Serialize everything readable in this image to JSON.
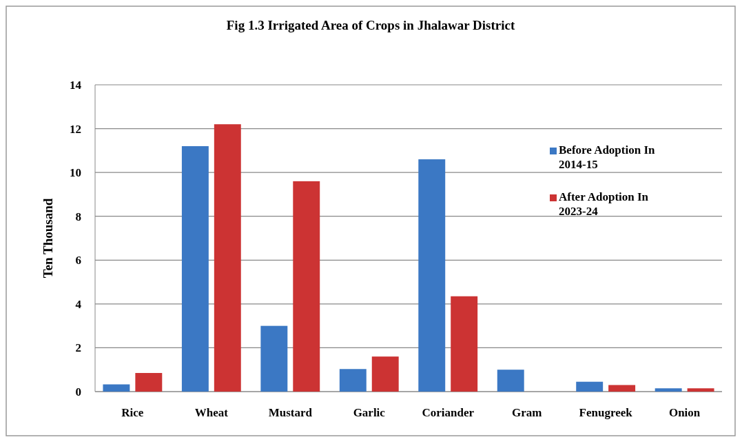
{
  "chart_data": {
    "type": "bar",
    "title": "Fig 1.3 Irrigated Area of Crops in Jhalawar District",
    "ylabel": "Ten Thousand",
    "categories": [
      "Rice",
      "Wheat",
      "Mustard",
      "Garlic",
      "Coriander",
      "Gram",
      "Fenugreek",
      "Onion"
    ],
    "series": [
      {
        "name": "Before Adoption In 2014-15",
        "color": "#3b78c4",
        "values": [
          0.33,
          11.2,
          3.0,
          1.03,
          10.6,
          1.0,
          0.45,
          0.15
        ]
      },
      {
        "name": "After Adoption In 2023-24",
        "color": "#cc3333",
        "values": [
          0.85,
          12.2,
          9.6,
          1.6,
          4.35,
          0,
          0.3,
          0.15
        ]
      }
    ],
    "ylim": [
      0,
      14
    ],
    "yticks": [
      0,
      2,
      4,
      6,
      8,
      10,
      12,
      14
    ],
    "grid": "y",
    "legend": "right"
  }
}
